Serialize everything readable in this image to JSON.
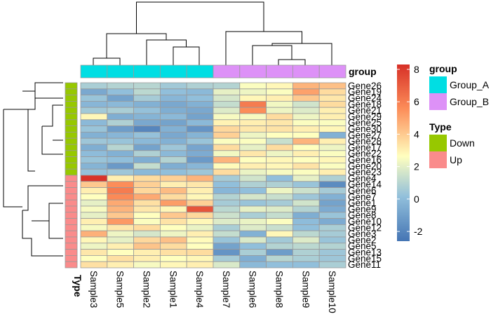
{
  "chart_data": {
    "type": "heatmap",
    "title": "",
    "columns": [
      "Sample3",
      "Sample5",
      "Sample2",
      "Sample1",
      "Sample4",
      "Sample7",
      "Sample6",
      "Sample8",
      "Sample9",
      "Sample10"
    ],
    "rows": [
      "Gene26",
      "Gene19",
      "Gene24",
      "Gene18",
      "Gene21",
      "Gene29",
      "Gene25",
      "Gene30",
      "Gene27",
      "Gene28",
      "Gene17",
      "Gene22",
      "Gene16",
      "Gene20",
      "Gene23",
      "Gene4",
      "Gene14",
      "Gene6",
      "Gene7",
      "Gene1",
      "Gene9",
      "Gene8",
      "Gene10",
      "Gene12",
      "Gene3",
      "Gene2",
      "Gene5",
      "Gene13",
      "Gene15",
      "Gene11"
    ],
    "values": [
      [
        0.6,
        0.8,
        0.9,
        0.4,
        0.7,
        0.8,
        2.5,
        2.8,
        4.5,
        4.2
      ],
      [
        -0.8,
        0.0,
        1.0,
        0.0,
        -0.2,
        2.0,
        2.2,
        2.5,
        5.0,
        3.5
      ],
      [
        0.2,
        -1.0,
        0.5,
        -0.3,
        0.0,
        1.6,
        2.8,
        3.0,
        4.0,
        3.2
      ],
      [
        -0.3,
        -0.2,
        -0.5,
        -0.8,
        -0.5,
        1.2,
        6.0,
        2.3,
        1.5,
        3.5
      ],
      [
        0.4,
        0.6,
        0.1,
        -0.6,
        -0.8,
        1.8,
        5.5,
        2.2,
        1.8,
        3.0
      ],
      [
        2.8,
        -0.6,
        -0.4,
        -0.2,
        -1.0,
        2.4,
        2.4,
        3.5,
        2.2,
        3.0
      ],
      [
        -0.2,
        0.7,
        -0.8,
        -1.0,
        -0.2,
        2.9,
        3.0,
        3.2,
        2.5,
        2.5
      ],
      [
        0.2,
        -1.2,
        -2.0,
        -0.5,
        -1.5,
        3.6,
        3.2,
        3.3,
        3.0,
        2.8
      ],
      [
        -0.5,
        -0.3,
        0.1,
        -0.8,
        -0.4,
        3.8,
        2.2,
        2.6,
        2.6,
        -0.5
      ],
      [
        0.3,
        0.2,
        -0.2,
        -0.5,
        0.2,
        2.5,
        2.5,
        1.3,
        4.5,
        3.0
      ],
      [
        -0.6,
        0.9,
        -1.0,
        0.3,
        -0.9,
        3.5,
        2.0,
        3.5,
        2.6,
        2.2
      ],
      [
        -0.1,
        -0.5,
        0.7,
        -0.2,
        -0.7,
        2.3,
        3.2,
        2.2,
        3.0,
        2.5
      ],
      [
        0.2,
        0.0,
        -0.6,
        0.8,
        -1.3,
        4.5,
        2.6,
        2.8,
        2.6,
        2.8
      ],
      [
        -0.4,
        -1.3,
        1.2,
        -0.6,
        -0.3,
        2.7,
        3.0,
        2.8,
        3.3,
        2.5
      ],
      [
        0.1,
        0.3,
        -0.2,
        0.0,
        0.3,
        3.5,
        2.1,
        2.4,
        2.5,
        3.0
      ],
      [
        8.2,
        3.0,
        3.5,
        3.8,
        4.5,
        0.5,
        1.5,
        0.0,
        2.0,
        0.7
      ],
      [
        4.0,
        5.5,
        3.8,
        3.0,
        3.2,
        0.0,
        0.7,
        0.7,
        0.2,
        -1.8
      ],
      [
        3.0,
        6.0,
        3.6,
        4.3,
        3.0,
        -0.3,
        0.0,
        2.2,
        1.4,
        0.5
      ],
      [
        2.6,
        5.6,
        4.8,
        3.5,
        2.8,
        0.8,
        1.6,
        1.3,
        0.3,
        -0.5
      ],
      [
        2.0,
        4.8,
        3.4,
        5.1,
        3.8,
        0.5,
        0.2,
        0.5,
        1.5,
        -1.0
      ],
      [
        2.4,
        4.5,
        3.2,
        2.8,
        7.2,
        1.0,
        2.0,
        1.8,
        0.8,
        -0.7
      ],
      [
        2.0,
        4.0,
        2.6,
        4.0,
        3.6,
        1.4,
        0.6,
        1.2,
        -0.6,
        0.2
      ],
      [
        3.0,
        5.2,
        2.5,
        3.3,
        2.8,
        1.8,
        2.1,
        2.5,
        -0.1,
        -0.7
      ],
      [
        2.4,
        3.2,
        3.5,
        2.6,
        2.1,
        0.6,
        1.8,
        1.3,
        0.0,
        0.6
      ],
      [
        4.6,
        2.2,
        1.6,
        2.2,
        3.0,
        1.2,
        -0.5,
        2.8,
        1.0,
        0.5
      ],
      [
        2.8,
        2.0,
        3.6,
        4.2,
        2.7,
        0.2,
        1.7,
        0.4,
        1.8,
        0.2
      ],
      [
        2.2,
        3.0,
        4.1,
        3.5,
        2.6,
        -1.0,
        0.0,
        0.8,
        1.0,
        0.8
      ],
      [
        3.2,
        2.6,
        3.0,
        3.4,
        3.5,
        -1.5,
        0.6,
        -1.2,
        0.7,
        0.3
      ],
      [
        2.6,
        3.4,
        3.0,
        2.6,
        2.8,
        0.5,
        -0.6,
        0.9,
        0.6,
        0.3
      ],
      [
        3.4,
        3.0,
        2.4,
        2.8,
        3.0,
        1.7,
        -0.2,
        0.0,
        0.0,
        0.6
      ]
    ],
    "col_annotation": {
      "name": "group",
      "values": [
        "Group_A",
        "Group_A",
        "Group_A",
        "Group_A",
        "Group_A",
        "Group_B",
        "Group_B",
        "Group_B",
        "Group_B",
        "Group_B"
      ]
    },
    "row_annotation": {
      "name": "Type",
      "values": [
        "Down",
        "Down",
        "Down",
        "Down",
        "Down",
        "Down",
        "Down",
        "Down",
        "Down",
        "Down",
        "Down",
        "Down",
        "Down",
        "Down",
        "Down",
        "Up",
        "Up",
        "Up",
        "Up",
        "Up",
        "Up",
        "Up",
        "Up",
        "Up",
        "Up",
        "Up",
        "Up",
        "Up",
        "Up",
        "Up"
      ]
    },
    "colorbar": {
      "range": [
        -2.6,
        8.3
      ],
      "ticks": [
        "8",
        "6",
        "4",
        "2",
        "0",
        "-2"
      ]
    },
    "legends": [
      {
        "title": "group",
        "items": [
          {
            "label": "Group_A",
            "color": "#00dee3"
          },
          {
            "label": "Group_B",
            "color": "#dd91f7"
          }
        ]
      },
      {
        "title": "Type",
        "items": [
          {
            "label": "Down",
            "color": "#97c800"
          },
          {
            "label": "Up",
            "color": "#fa8b8b"
          }
        ]
      }
    ],
    "colors": {
      "low": "#4575b4",
      "mid": "#ffffbf",
      "high": "#d73027"
    },
    "clustering": {
      "rows": true,
      "columns": true
    }
  }
}
